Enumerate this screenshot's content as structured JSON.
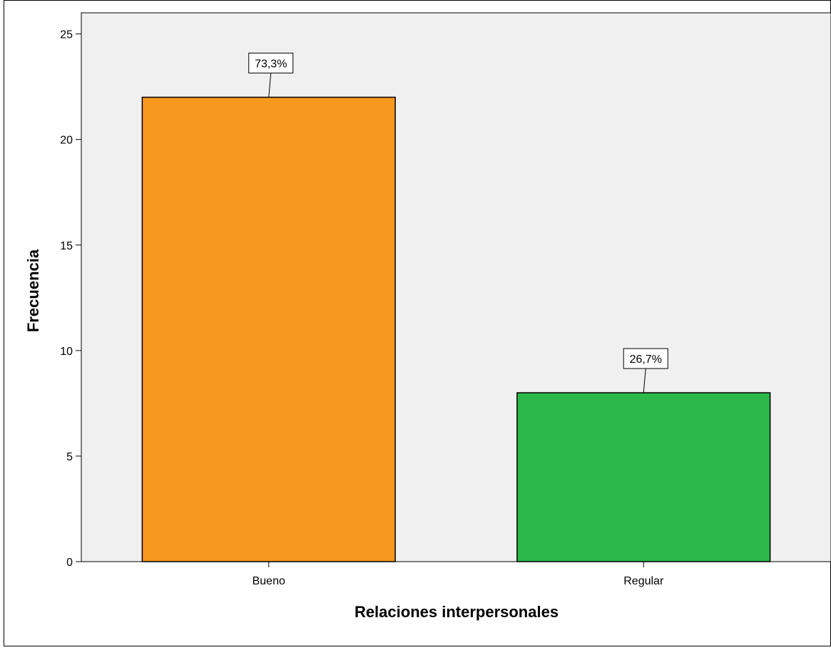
{
  "chart_data": {
    "type": "bar",
    "title": "",
    "xlabel": "Relaciones interpersonales",
    "ylabel": "Frecuencia",
    "categories": [
      "Bueno",
      "Regular"
    ],
    "values": [
      22,
      8
    ],
    "data_labels": [
      "73,3%",
      "26,7%"
    ],
    "colors": [
      "#f7981f",
      "#2db84a"
    ],
    "ylim": [
      0,
      26
    ],
    "yticks": [
      0,
      5,
      10,
      15,
      20,
      25
    ],
    "grid": false,
    "plot_background": "#f0f0f0"
  }
}
